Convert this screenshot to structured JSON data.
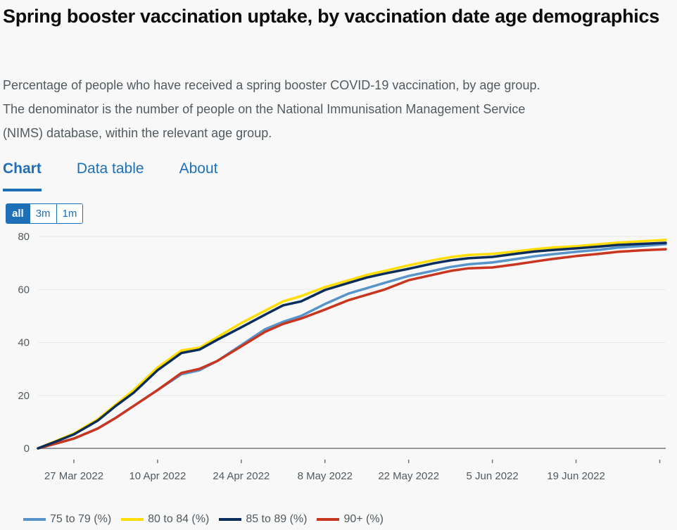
{
  "header": {
    "title": "Spring booster vaccination uptake, by vaccination date age demographics",
    "description_lines": [
      "Percentage of people who have received a spring booster COVID-19 vaccination, by age group.",
      "The denominator is the number of people on the National Immunisation Management Service",
      "(NIMS) database, within the relevant age group."
    ]
  },
  "tabs": [
    {
      "label": "Chart",
      "active": true
    },
    {
      "label": "Data table",
      "active": false
    },
    {
      "label": "About",
      "active": false
    }
  ],
  "range_buttons": [
    {
      "label": "all",
      "active": true
    },
    {
      "label": "3m",
      "active": false
    },
    {
      "label": "1m",
      "active": false
    }
  ],
  "colors": {
    "accent": "#1d70b8",
    "grid": "#e8e8e8",
    "axis": "#6f777b"
  },
  "chart_data": {
    "type": "line",
    "title": "Spring booster vaccination uptake, by vaccination date age demographics",
    "xlabel": "",
    "ylabel": "",
    "ylim": [
      0,
      80
    ],
    "yticks": [
      0,
      20,
      40,
      60,
      80
    ],
    "grid": true,
    "legend_position": "bottom",
    "x_start": "2022-03-21",
    "x_end": "2022-07-04",
    "xticks": [
      {
        "date": "2022-03-27",
        "label": "27 Mar 2022"
      },
      {
        "date": "2022-04-10",
        "label": "10 Apr 2022"
      },
      {
        "date": "2022-04-24",
        "label": "24 Apr 2022"
      },
      {
        "date": "2022-05-08",
        "label": "8 May 2022"
      },
      {
        "date": "2022-05-22",
        "label": "22 May 2022"
      },
      {
        "date": "2022-06-05",
        "label": "5 Jun 2022"
      },
      {
        "date": "2022-06-19",
        "label": "19 Jun 2022"
      },
      {
        "date": "2022-07-03",
        "label": ""
      }
    ],
    "x": [
      "2022-03-21",
      "2022-03-24",
      "2022-03-27",
      "2022-03-31",
      "2022-04-03",
      "2022-04-06",
      "2022-04-10",
      "2022-04-14",
      "2022-04-17",
      "2022-04-20",
      "2022-04-24",
      "2022-04-28",
      "2022-05-01",
      "2022-05-04",
      "2022-05-08",
      "2022-05-12",
      "2022-05-15",
      "2022-05-18",
      "2022-05-22",
      "2022-05-26",
      "2022-05-29",
      "2022-06-01",
      "2022-06-05",
      "2022-06-09",
      "2022-06-12",
      "2022-06-15",
      "2022-06-19",
      "2022-06-23",
      "2022-06-26",
      "2022-06-30",
      "2022-07-04"
    ],
    "series": [
      {
        "name": "75 to 79 (%)",
        "color": "#5694ca",
        "values": [
          0,
          1.8,
          3.7,
          7.5,
          11.5,
          16,
          22,
          28,
          29.5,
          33,
          39,
          45,
          47.8,
          50,
          54.5,
          58.5,
          60.5,
          62.5,
          65.1,
          67,
          68.5,
          69.5,
          70.2,
          71.5,
          72.5,
          73.3,
          74.2,
          75,
          75.8,
          76.4,
          77.1
        ]
      },
      {
        "name": "80 to 84 (%)",
        "color": "#ffdd00",
        "values": [
          0,
          2.8,
          5.6,
          11,
          16.5,
          22,
          30.5,
          37,
          38,
          42,
          47.3,
          52,
          55.5,
          57.5,
          60.9,
          63.5,
          65.5,
          67,
          69.1,
          71,
          72.2,
          73,
          73.4,
          74.4,
          75.2,
          75.8,
          76.3,
          77.1,
          77.7,
          78.2,
          78.7
        ]
      },
      {
        "name": "85 to 89 (%)",
        "color": "#0b2d5b",
        "values": [
          0,
          2.6,
          5.3,
          10.5,
          16,
          21,
          29.5,
          36,
          37.3,
          41,
          45.7,
          50.5,
          54,
          55.5,
          59.8,
          62.5,
          64.5,
          66,
          67.8,
          69.8,
          71,
          71.8,
          72.3,
          73.5,
          74.3,
          74.9,
          75.5,
          76.2,
          76.8,
          77.2,
          77.6
        ]
      },
      {
        "name": "90+ (%)",
        "color": "#c9361f",
        "values": [
          0,
          1.8,
          3.7,
          7.5,
          11.5,
          16,
          22,
          28.5,
          30,
          33,
          38.5,
          44,
          47,
          49,
          52.4,
          56,
          58,
          60,
          63.5,
          65.5,
          67,
          68,
          68.3,
          69.5,
          70.5,
          71.5,
          72.6,
          73.5,
          74.2,
          74.8,
          75.2
        ]
      }
    ]
  }
}
